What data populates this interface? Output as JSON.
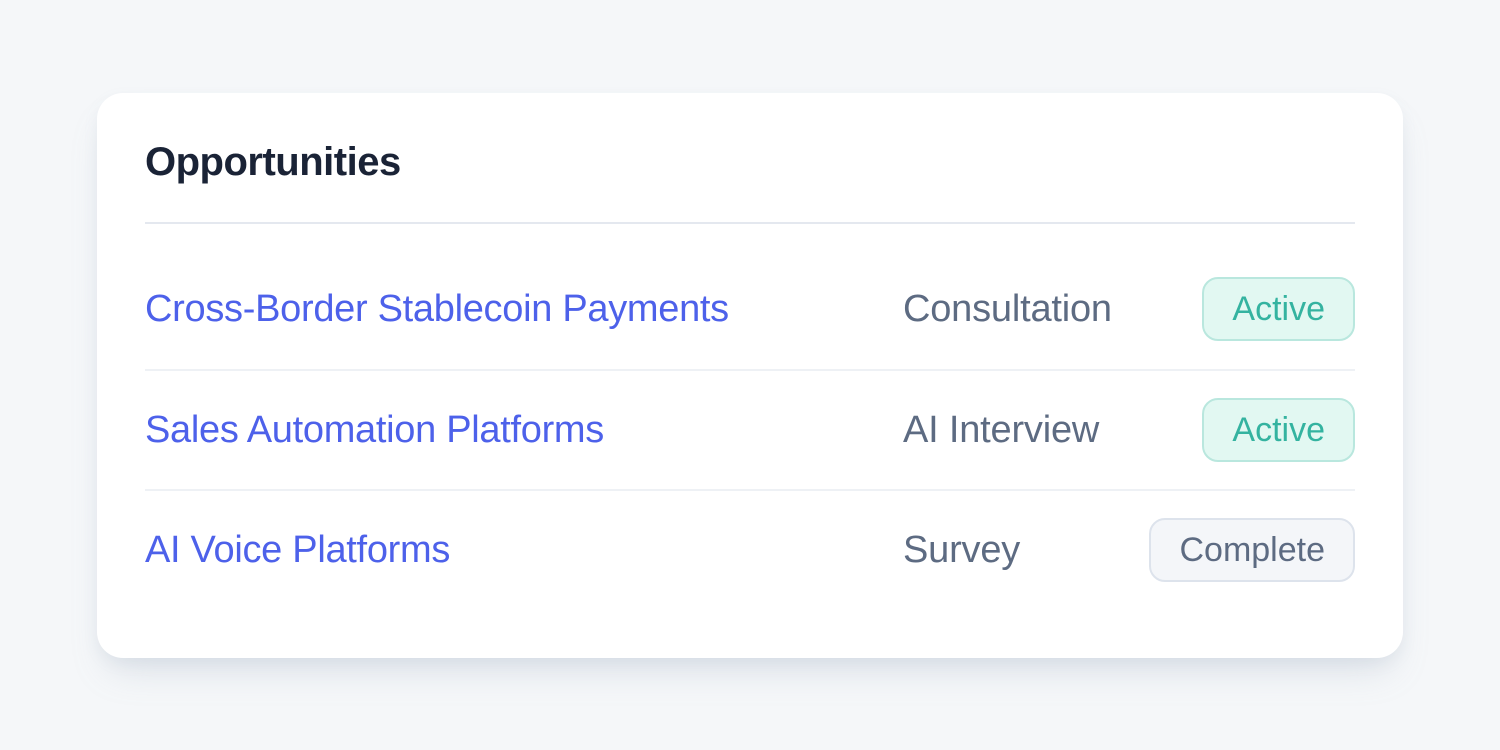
{
  "card": {
    "title": "Opportunities",
    "rows": [
      {
        "name": "Cross-Border Stablecoin Payments",
        "type": "Consultation",
        "status": "Active",
        "status_variant": "active"
      },
      {
        "name": "Sales Automation Platforms",
        "type": "AI Interview",
        "status": "Active",
        "status_variant": "active"
      },
      {
        "name": "AI Voice Platforms",
        "type": "Survey",
        "status": "Complete",
        "status_variant": "complete"
      }
    ]
  },
  "colors": {
    "page_bg": "#f5f7f9",
    "card_bg": "#ffffff",
    "title": "#1a2336",
    "link": "#4d61ea",
    "muted": "#5d6b82",
    "divider_strong": "#e4e8ef",
    "divider": "#eef1f5",
    "active_text": "#34b3a0",
    "active_bg": "#e2f8f2",
    "active_border": "#b9e7de",
    "complete_text": "#5d6b82",
    "complete_bg": "#f4f6f9",
    "complete_border": "#dde3ec"
  }
}
